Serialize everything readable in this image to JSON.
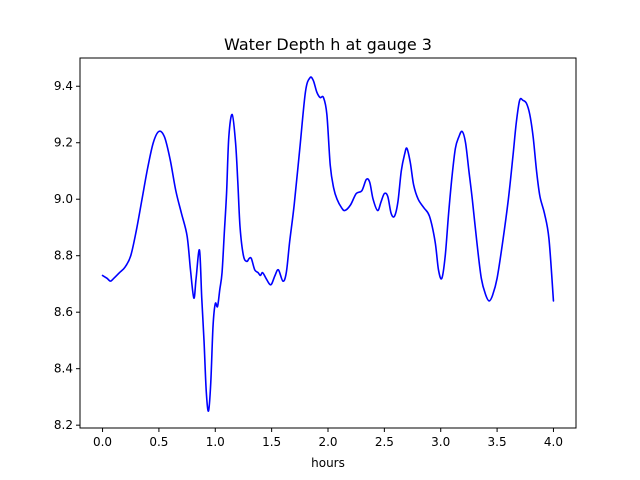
{
  "chart_data": {
    "type": "line",
    "title": "Water Depth h at gauge 3",
    "xlabel": "hours",
    "ylabel": "",
    "xlim": [
      -0.2,
      4.2
    ],
    "ylim": [
      8.19,
      9.5
    ],
    "xticks": [
      0.0,
      0.5,
      1.0,
      1.5,
      2.0,
      2.5,
      3.0,
      3.5,
      4.0
    ],
    "xtick_labels": [
      "0.0",
      "0.5",
      "1.0",
      "1.5",
      "2.0",
      "2.5",
      "3.0",
      "3.5",
      "4.0"
    ],
    "yticks": [
      8.2,
      8.4,
      8.6,
      8.8,
      9.0,
      9.2,
      9.4
    ],
    "ytick_labels": [
      "8.2",
      "8.4",
      "8.6",
      "8.8",
      "9.0",
      "9.2",
      "9.4"
    ],
    "grid": false,
    "series": [
      {
        "color": "#0000ff",
        "x": [
          0.0,
          0.04,
          0.07,
          0.1,
          0.15,
          0.2,
          0.25,
          0.3,
          0.35,
          0.4,
          0.45,
          0.5,
          0.55,
          0.6,
          0.65,
          0.7,
          0.75,
          0.78,
          0.81,
          0.83,
          0.86,
          0.88,
          0.9,
          0.92,
          0.94,
          0.96,
          0.98,
          1.0,
          1.02,
          1.04,
          1.06,
          1.08,
          1.1,
          1.12,
          1.15,
          1.18,
          1.2,
          1.22,
          1.25,
          1.28,
          1.3,
          1.32,
          1.35,
          1.38,
          1.4,
          1.42,
          1.45,
          1.48,
          1.5,
          1.53,
          1.56,
          1.6,
          1.63,
          1.66,
          1.7,
          1.75,
          1.8,
          1.84,
          1.87,
          1.9,
          1.93,
          1.96,
          1.99,
          2.02,
          2.05,
          2.08,
          2.12,
          2.15,
          2.2,
          2.25,
          2.3,
          2.34,
          2.37,
          2.4,
          2.44,
          2.47,
          2.5,
          2.53,
          2.56,
          2.59,
          2.62,
          2.65,
          2.68,
          2.7,
          2.73,
          2.76,
          2.8,
          2.85,
          2.9,
          2.95,
          2.98,
          3.01,
          3.04,
          3.07,
          3.1,
          3.13,
          3.16,
          3.19,
          3.22,
          3.25,
          3.28,
          3.32,
          3.36,
          3.4,
          3.43,
          3.46,
          3.5,
          3.55,
          3.6,
          3.64,
          3.67,
          3.7,
          3.73,
          3.76,
          3.79,
          3.82,
          3.85,
          3.88,
          3.92,
          3.96,
          4.0
        ],
        "y": [
          8.73,
          8.72,
          8.71,
          8.72,
          8.74,
          8.76,
          8.8,
          8.89,
          9.0,
          9.11,
          9.2,
          9.24,
          9.22,
          9.14,
          9.03,
          8.95,
          8.87,
          8.75,
          8.65,
          8.72,
          8.82,
          8.65,
          8.5,
          8.32,
          8.25,
          8.35,
          8.55,
          8.63,
          8.62,
          8.68,
          8.74,
          8.88,
          9.02,
          9.22,
          9.3,
          9.2,
          9.06,
          8.9,
          8.8,
          8.78,
          8.79,
          8.79,
          8.75,
          8.74,
          8.73,
          8.74,
          8.72,
          8.7,
          8.7,
          8.73,
          8.75,
          8.71,
          8.74,
          8.85,
          8.98,
          9.18,
          9.38,
          9.43,
          9.42,
          9.38,
          9.36,
          9.36,
          9.3,
          9.12,
          9.04,
          9.0,
          8.97,
          8.96,
          8.98,
          9.02,
          9.03,
          9.07,
          9.06,
          9.0,
          8.96,
          8.99,
          9.02,
          9.01,
          8.95,
          8.94,
          8.99,
          9.1,
          9.16,
          9.18,
          9.13,
          9.05,
          9.0,
          8.97,
          8.94,
          8.85,
          8.75,
          8.72,
          8.8,
          8.95,
          9.08,
          9.18,
          9.22,
          9.24,
          9.2,
          9.1,
          9.0,
          8.85,
          8.72,
          8.66,
          8.64,
          8.66,
          8.72,
          8.85,
          9.0,
          9.15,
          9.27,
          9.35,
          9.35,
          9.34,
          9.3,
          9.22,
          9.1,
          9.01,
          8.95,
          8.86,
          8.64
        ]
      }
    ]
  }
}
